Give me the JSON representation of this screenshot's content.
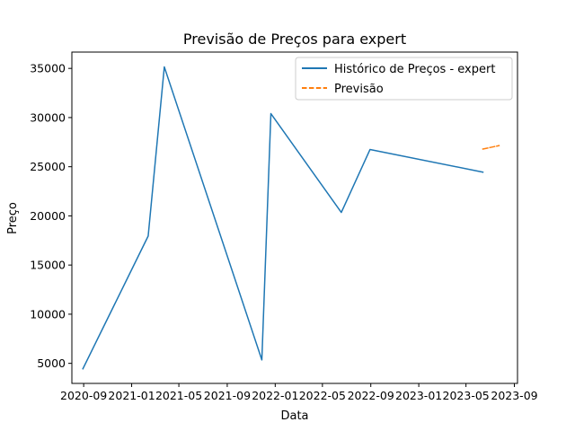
{
  "chart_data": {
    "type": "line",
    "title": "Previsão de Preços para expert",
    "xlabel": "Data",
    "ylabel": "Preço",
    "x_axis_type": "date",
    "xlim": [
      "2020-08-02",
      "2023-09-09"
    ],
    "ylim": [
      2960,
      36660
    ],
    "x_ticks": [
      {
        "date": "2020-09-01",
        "label": "2020-09"
      },
      {
        "date": "2021-01-01",
        "label": "2021-01"
      },
      {
        "date": "2021-05-01",
        "label": "2021-05"
      },
      {
        "date": "2021-09-01",
        "label": "2021-09"
      },
      {
        "date": "2022-01-01",
        "label": "2022-01"
      },
      {
        "date": "2022-05-01",
        "label": "2022-05"
      },
      {
        "date": "2022-09-01",
        "label": "2022-09"
      },
      {
        "date": "2023-01-01",
        "label": "2023-01"
      },
      {
        "date": "2023-05-01",
        "label": "2023-05"
      },
      {
        "date": "2023-09-01",
        "label": "2023-09"
      }
    ],
    "y_ticks": [
      5000,
      10000,
      15000,
      20000,
      25000,
      30000,
      35000
    ],
    "grid": false,
    "legend_position": "top-right",
    "series": [
      {
        "name": "Histórico de Preços - expert",
        "color": "#1f77b4",
        "style": "solid",
        "points": [
          {
            "x": "2020-08-30",
            "y": 4450
          },
          {
            "x": "2021-02-12",
            "y": 17950
          },
          {
            "x": "2021-03-25",
            "y": 35150
          },
          {
            "x": "2021-11-28",
            "y": 5350
          },
          {
            "x": "2021-12-21",
            "y": 30400
          },
          {
            "x": "2022-06-18",
            "y": 20350
          },
          {
            "x": "2022-08-30",
            "y": 26750
          },
          {
            "x": "2023-06-13",
            "y": 24450
          }
        ]
      },
      {
        "name": "Previsão",
        "color": "#ff7f0e",
        "style": "dashed",
        "points": [
          {
            "x": "2023-06-13",
            "y": 26800
          },
          {
            "x": "2023-07-01",
            "y": 26950
          },
          {
            "x": "2023-07-24",
            "y": 27150
          }
        ]
      }
    ]
  }
}
